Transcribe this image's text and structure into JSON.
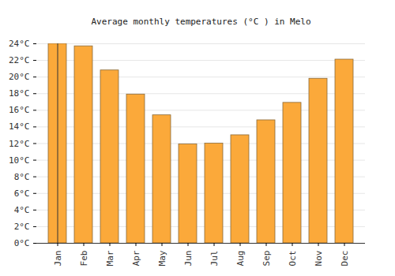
{
  "chart_data": {
    "type": "bar",
    "title": "Average monthly temperatures (°C ) in Melo",
    "categories": [
      "Jan",
      "Feb",
      "Mar",
      "Apr",
      "May",
      "Jun",
      "Jul",
      "Aug",
      "Sep",
      "Oct",
      "Nov",
      "Dec"
    ],
    "values": [
      24.0,
      23.7,
      20.8,
      17.9,
      15.4,
      11.9,
      12.0,
      13.0,
      14.8,
      16.9,
      19.8,
      22.1
    ],
    "color": "#fba93a",
    "ylim": [
      0,
      24
    ],
    "yticks": [
      {
        "value": 0,
        "label": "0°C"
      },
      {
        "value": 2,
        "label": "2°C"
      },
      {
        "value": 4,
        "label": "4°C"
      },
      {
        "value": 6,
        "label": "6°C"
      },
      {
        "value": 8,
        "label": "8°C"
      },
      {
        "value": 10,
        "label": "10°C"
      },
      {
        "value": 12,
        "label": "12°C"
      },
      {
        "value": 14,
        "label": "14°C"
      },
      {
        "value": 16,
        "label": "16°C"
      },
      {
        "value": 18,
        "label": "18°C"
      },
      {
        "value": 20,
        "label": "20°C"
      },
      {
        "value": 22,
        "label": "22°C"
      },
      {
        "value": 24,
        "label": "24°C"
      }
    ],
    "grid": true
  }
}
